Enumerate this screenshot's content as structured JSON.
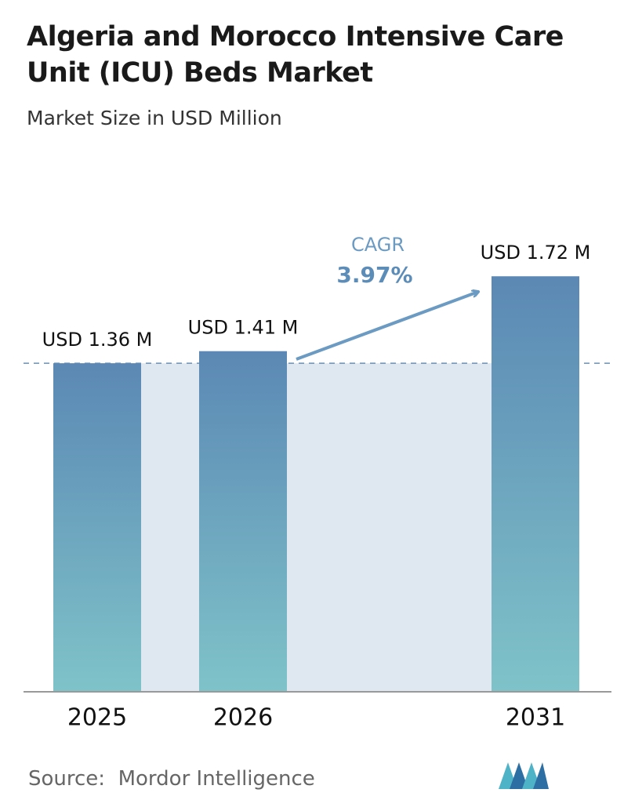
{
  "chart_data": {
    "type": "bar",
    "title": "Algeria and Morocco Intensive Care Unit (ICU) Beds Market",
    "subtitle": "Market Size in USD Million",
    "categories": [
      "2025",
      "2026",
      "2031"
    ],
    "values": [
      1.36,
      1.41,
      1.72
    ],
    "value_labels": [
      "USD 1.36 M",
      "USD 1.41 M",
      "USD 1.72 M"
    ],
    "annotations": {
      "cagr_label": "CAGR",
      "cagr_value": "3.97%"
    },
    "source": "Source:  Mordor Intelligence"
  }
}
